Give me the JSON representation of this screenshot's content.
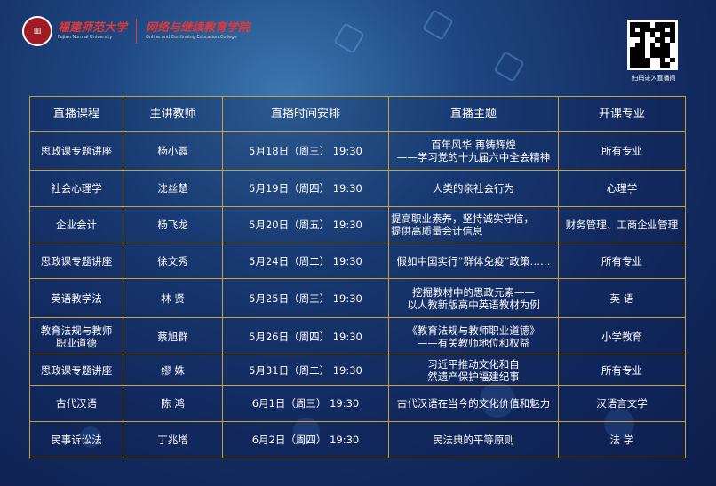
{
  "header": {
    "university_cn": "福建师范大学",
    "university_en": "Fujian Normal University",
    "college_cn": "网络与继续教育学院",
    "college_en": "Online and Continuing Education College",
    "seal_icon": "university-seal-icon"
  },
  "qr": {
    "caption": "扫码进入直播间"
  },
  "table": {
    "headers": [
      "直播课程",
      "主讲教师",
      "直播时间安排",
      "直播主题",
      "开课专业"
    ],
    "rows": [
      [
        "思政课专题讲座",
        "杨小霞",
        "5月18日（周三） 19:30",
        "百年风华 再铸辉煌\n——学习党的十九届六中全会精神",
        "所有专业"
      ],
      [
        "社会心理学",
        "沈丝楚",
        "5月19日（周四） 19:30",
        "人类的亲社会行为",
        "心理学"
      ],
      [
        "企业会计",
        "杨飞龙",
        "5月20日（周五） 19:30",
        "提高职业素养，坚持诚实守信，\n提供高质量会计信息",
        "财务管理、工商企业管理"
      ],
      [
        "思政课专题讲座",
        "徐文秀",
        "5月24日（周二） 19:30",
        "假如中国实行“群体免疫”政策……",
        "所有专业"
      ],
      [
        "英语教学法",
        "林 贤",
        "5月25日（周三） 19:30",
        "挖掘教材中的思政元素——\n以人教新版高中英语教材为例",
        "英 语"
      ],
      [
        "教育法规与教师\n职业道德",
        "蔡旭群",
        "5月26日（周四） 19:30",
        "《教育法规与教师职业道德》\n——有关教师地位和权益",
        "小学教育"
      ],
      [
        "思政课专题讲座",
        "缪 姝",
        "5月31日（周二） 19:30",
        "习近平推动文化和自\n然遗产保护福建纪事",
        "所有专业"
      ],
      [
        "古代汉语",
        "陈 鸿",
        "6月1日（周三） 19:30",
        "古代汉语在当今的文化价值和魅力",
        "汉语言文学"
      ],
      [
        "民事诉讼法",
        "丁兆增",
        "6月2日（周四） 19:30",
        "民法典的平等原则",
        "法 学"
      ]
    ]
  }
}
